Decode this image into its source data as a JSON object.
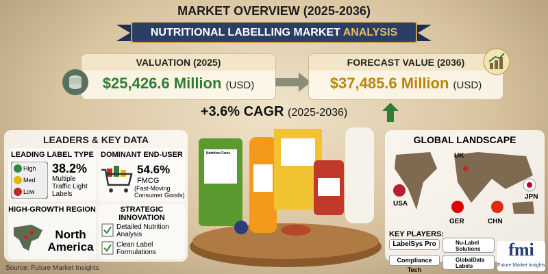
{
  "header": {
    "title": "MARKET OVERVIEW (2025-2036)",
    "banner_main": "NUTRITIONAL LABELLING MARKET",
    "banner_accent": "ANALYSIS"
  },
  "valuation": {
    "label": "VALUATION (2025)",
    "amount": "$25,426.6 Million",
    "unit": "(USD)"
  },
  "forecast": {
    "label": "FORECAST VALUE (2036)",
    "amount": "$37,485.6 Million",
    "unit": "(USD)"
  },
  "cagr": {
    "value": "+3.6% CAGR",
    "period": "(2025-2036)"
  },
  "leaders": {
    "title": "LEADERS & KEY DATA",
    "leading_label_type": {
      "title": "LEADING LABEL TYPE",
      "levels": [
        "High",
        "Med",
        "Low"
      ],
      "value": "38.2%",
      "description": "Multiple Traffic Light Labels"
    },
    "dominant_end_user": {
      "title": "DOMINANT END-USER",
      "value": "54.6%",
      "name": "FMCG",
      "note": "(Fast-Moving Consumer Goods)"
    },
    "high_growth_region": {
      "title": "HIGH-GROWTH REGION",
      "value": "North America"
    },
    "strategic_innovation": {
      "title": "STRATEGIC INNOVATION",
      "items": [
        "Detailed Nutrition Analysis",
        "Clean Label Formulations"
      ]
    }
  },
  "products": {
    "label": "Nutrition Facts"
  },
  "global_landscape": {
    "title": "GLOBAL LANDSCAPE",
    "countries": [
      "UK",
      "USA",
      "JPN",
      "GER",
      "CHN"
    ]
  },
  "key_players": {
    "title": "KEY PLAYERS:",
    "players": [
      "LabelSys Pro",
      "Nu-Label Solutions",
      "Compliance Tech",
      "GlobalData Labels"
    ]
  },
  "footer": {
    "source": "Source: Future Market Insights",
    "logo": "fmi",
    "logo_caption": "Future Market Insights"
  }
}
